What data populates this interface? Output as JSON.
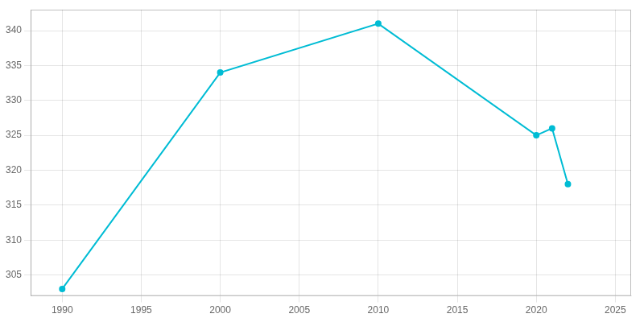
{
  "chart_data": {
    "type": "line",
    "x": [
      1990,
      2000,
      2010,
      2020,
      2021,
      2022
    ],
    "values": [
      303,
      334,
      341,
      325,
      326,
      318
    ],
    "color": "#00bcd4",
    "marker": "o",
    "xlim": [
      1988,
      2026
    ],
    "ylim": [
      302,
      343
    ],
    "xticks": [
      1990,
      1995,
      2000,
      2005,
      2010,
      2015,
      2020,
      2025
    ],
    "yticks": [
      305,
      310,
      315,
      320,
      325,
      330,
      335,
      340
    ],
    "grid": true
  }
}
